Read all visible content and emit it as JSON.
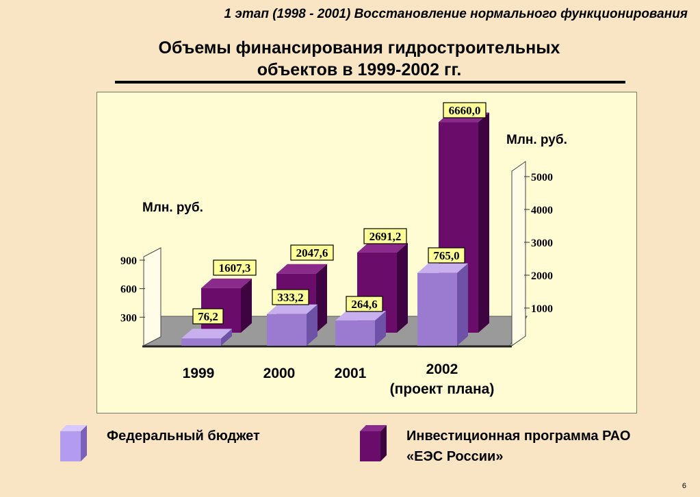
{
  "header": "1 этап (1998 - 2001) Восстановление нормального функционирования",
  "title_line1": "Объемы финансирования гидростроительных",
  "title_line2": "объектов в 1999-2002 гг.",
  "unit_left": "Млн. руб.",
  "unit_right": "Млн. руб.",
  "page_number": "6",
  "colors": {
    "federal_front": "#9b7bd0",
    "federal_top": "#c8b0ee",
    "federal_side": "#6e52a8",
    "invest_front": "#6a0d6a",
    "invest_top": "#8a2a8a",
    "invest_side": "#3e0442",
    "label_bg": "#ffff99",
    "floor": "#9a9a9a",
    "panel": "#fffbd2",
    "background": "#f9e5c4"
  },
  "legend": [
    {
      "name": "Федеральный бюджет",
      "icon": "federal-budget-box-icon"
    },
    {
      "name": "Инвестиционная программа РАО «ЕЭС России»",
      "icon": "investment-box-icon"
    }
  ],
  "chart_data": {
    "type": "bar",
    "categories": [
      "1999",
      "2000",
      "2001",
      "2002"
    ],
    "category_sublabels": [
      "",
      "",
      "",
      "(проект плана)"
    ],
    "series": [
      {
        "name": "Федеральный бюджет",
        "values": [
          76.2,
          333.2,
          264.6,
          765.0
        ],
        "labels": [
          "76,2",
          "333,2",
          "264,6",
          "765,0"
        ],
        "axis": "left"
      },
      {
        "name": "Инвестиционная программа РАО «ЕЭС России»",
        "values": [
          1607.3,
          2047.6,
          2691.2,
          6660.0
        ],
        "labels": [
          "1607,3",
          "2047,6",
          "2691,2",
          "6660,0"
        ],
        "axis": "right"
      }
    ],
    "left_axis": {
      "ticks": [
        300,
        600,
        900
      ],
      "label": "Млн. руб."
    },
    "right_axis": {
      "ticks": [
        1000,
        2000,
        3000,
        4000,
        5000
      ],
      "label": "Млн. руб."
    },
    "grid": false,
    "legend_position": "bottom"
  }
}
